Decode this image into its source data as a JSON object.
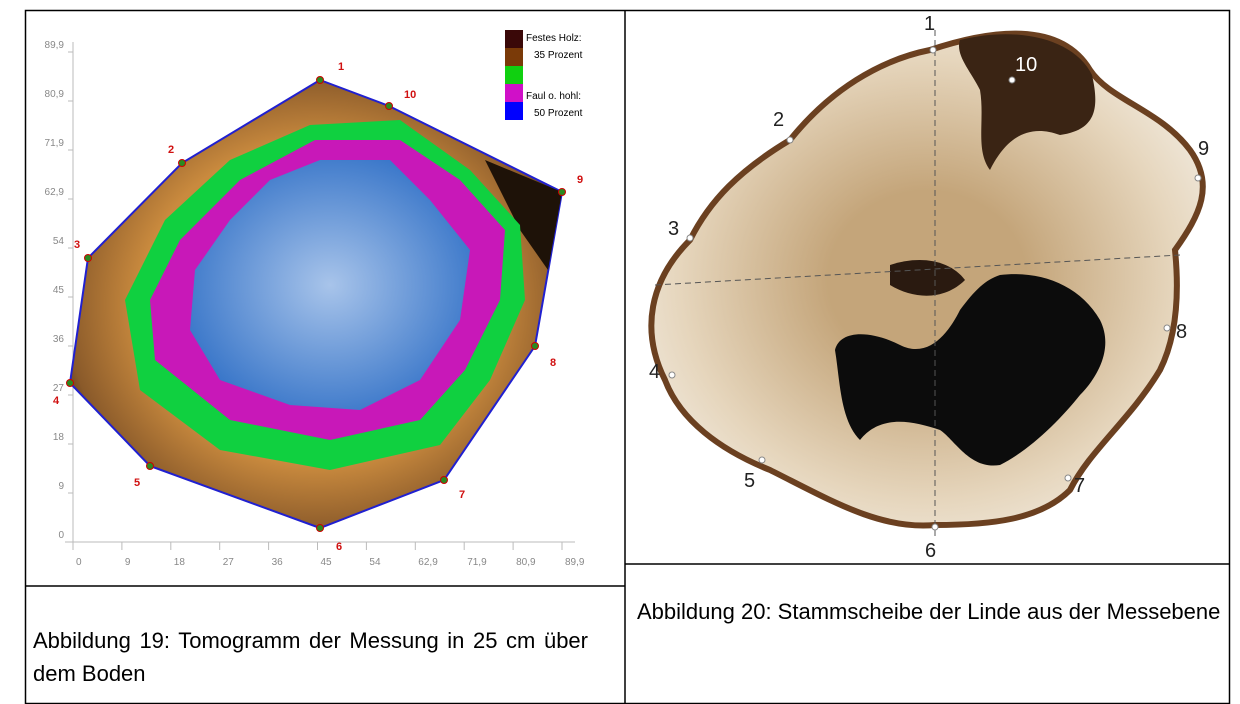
{
  "figures": [
    {
      "caption": "Abbildung 19: Tomogramm der Messung in 25 cm über dem Boden",
      "y_ticks": [
        "0",
        "9",
        "18",
        "27",
        "36",
        "45",
        "54",
        "62,9",
        "71,9",
        "80,9",
        "89,9"
      ],
      "x_ticks": [
        "0",
        "9",
        "18",
        "27",
        "36",
        "45",
        "54",
        "62,9",
        "71,9",
        "80,9",
        "89,9"
      ],
      "legend": [
        "Festes Holz:",
        "35 Prozent",
        "Faul o. hohl:",
        "50 Prozent"
      ],
      "sensors": [
        "1",
        "2",
        "3",
        "4",
        "5",
        "6",
        "7",
        "8",
        "9",
        "10"
      ]
    },
    {
      "caption": "Abbildung 20: Stammscheibe der Linde aus der Messebene",
      "labels": [
        "1",
        "2",
        "3",
        "4",
        "5",
        "6",
        "7",
        "8",
        "9",
        "10"
      ]
    }
  ]
}
